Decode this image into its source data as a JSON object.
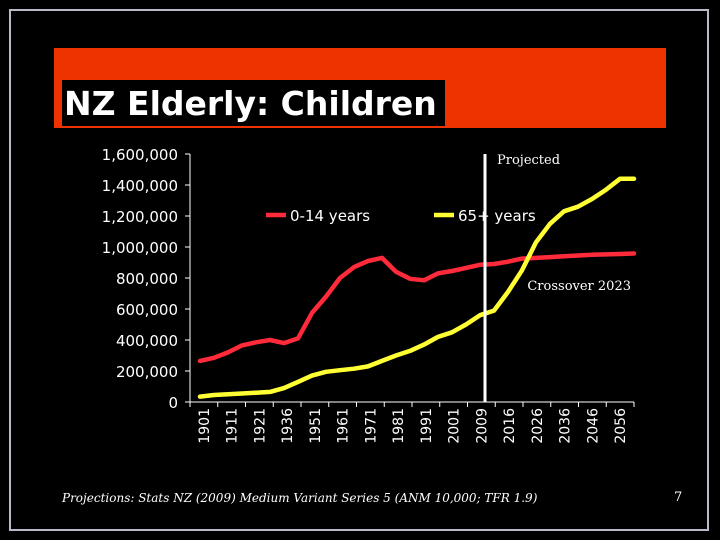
{
  "slide": {
    "title": "NZ Elderly: Children",
    "source_note": "Projections: Stats NZ (2009) Medium Variant Series 5 (ANM 10,000; TFR 1.9)",
    "page_number": "7"
  },
  "colors": {
    "background": "#000000",
    "title_bar": "#ee3300",
    "series_children": "#ff2a3a",
    "series_elderly": "#ffff33",
    "marker": "#ffffff"
  },
  "chart_data": {
    "type": "line",
    "title": "",
    "xlabel": "",
    "ylabel": "",
    "ylim": [
      0,
      1600000
    ],
    "y_ticks": [
      0,
      200000,
      400000,
      600000,
      800000,
      1000000,
      1200000,
      1400000,
      1600000
    ],
    "y_tick_labels": [
      "0",
      "200,000",
      "400,000",
      "600,000",
      "800,000",
      "1,000,000",
      "1,200,000",
      "1,400,000",
      "1,600,000"
    ],
    "categories": [
      "1901",
      "1906",
      "1911",
      "1916",
      "1921",
      "1926",
      "1936",
      "1945",
      "1951",
      "1956",
      "1961",
      "1966",
      "1971",
      "1976",
      "1981",
      "1986",
      "1991",
      "1996",
      "2001",
      "2006",
      "2009",
      "2011",
      "2016",
      "2021",
      "2026",
      "2031",
      "2036",
      "2041",
      "2046",
      "2051",
      "2056",
      "2061"
    ],
    "x_tick_labels": [
      "1901",
      "1911",
      "1921",
      "1936",
      "1951",
      "1961",
      "1971",
      "1981",
      "1991",
      "2001",
      "2009",
      "2016",
      "2026",
      "2036",
      "2046",
      "2056"
    ],
    "series": [
      {
        "name": "0-14 years",
        "values": [
          265000,
          285000,
          320000,
          365000,
          385000,
          400000,
          380000,
          410000,
          575000,
          680000,
          800000,
          870000,
          910000,
          930000,
          840000,
          795000,
          785000,
          830000,
          845000,
          865000,
          885000,
          890000,
          905000,
          925000,
          930000,
          935000,
          940000,
          945000,
          950000,
          952000,
          955000,
          958000
        ]
      },
      {
        "name": "65+ years",
        "values": [
          35000,
          45000,
          50000,
          55000,
          60000,
          65000,
          90000,
          130000,
          170000,
          195000,
          205000,
          215000,
          230000,
          265000,
          300000,
          330000,
          370000,
          420000,
          450000,
          500000,
          560000,
          590000,
          710000,
          850000,
          1030000,
          1150000,
          1230000,
          1260000,
          1310000,
          1370000,
          1440000,
          1440000
        ]
      }
    ],
    "annotations": [
      {
        "text": "Projected",
        "x": "2009"
      },
      {
        "text": "Crossover 2023",
        "x": "2023"
      }
    ],
    "legend": {
      "placement": "top-center",
      "entries": [
        "0-14 years",
        "65+ years"
      ]
    },
    "grid": false
  }
}
